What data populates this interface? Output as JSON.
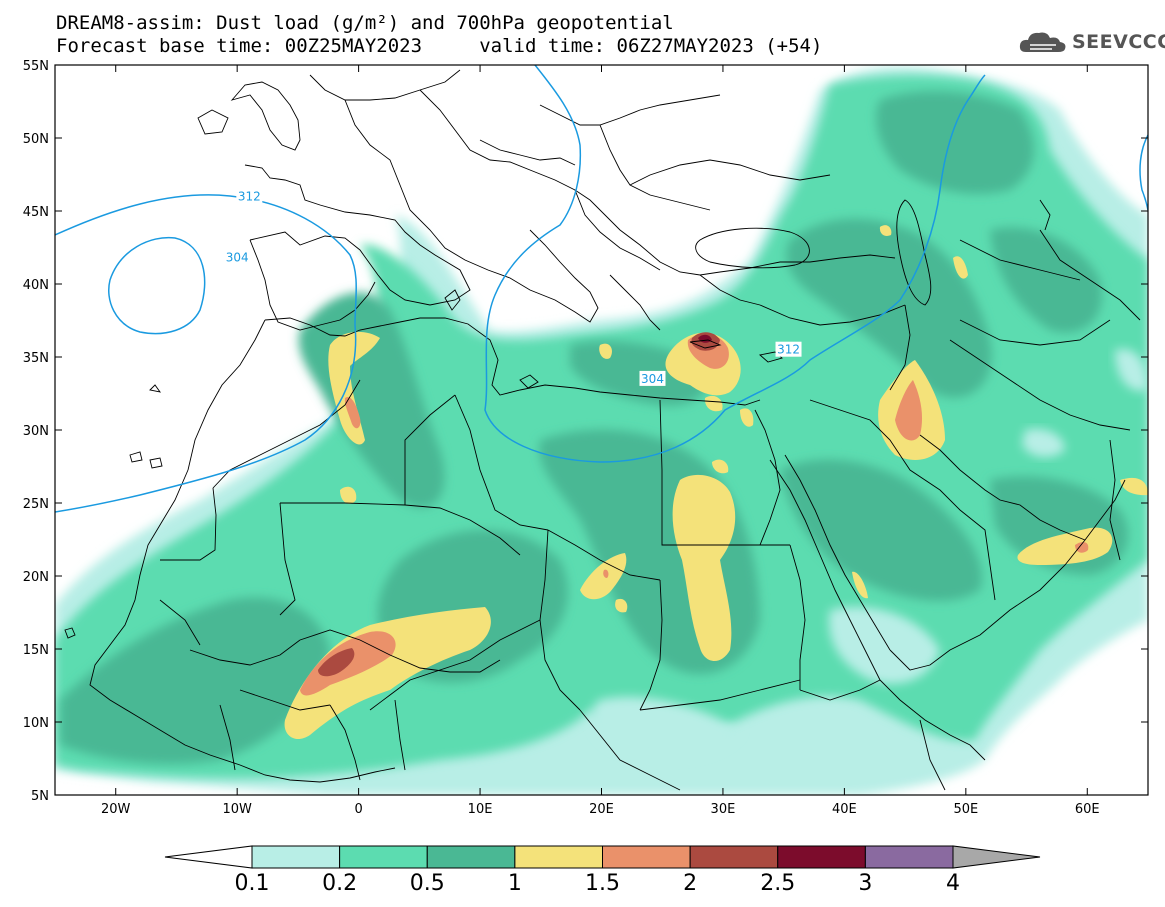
{
  "title": {
    "line1": "DREAM8-assim: Dust load (g/m²) and 700hPa geopotential",
    "line2": "Forecast base time: 00Z25MAY2023     valid time: 06Z27MAY2023 (+54)"
  },
  "logo": {
    "text": "SEEVCCC",
    "icon": "cloud-icon"
  },
  "map": {
    "lon_range": [
      -25,
      65
    ],
    "lat_range": [
      5,
      55
    ],
    "lon_ticks": [
      {
        "value": -20,
        "label": "20W"
      },
      {
        "value": -10,
        "label": "10W"
      },
      {
        "value": 0,
        "label": "0"
      },
      {
        "value": 10,
        "label": "10E"
      },
      {
        "value": 20,
        "label": "20E"
      },
      {
        "value": 30,
        "label": "30E"
      },
      {
        "value": 40,
        "label": "40E"
      },
      {
        "value": 50,
        "label": "50E"
      },
      {
        "value": 60,
        "label": "60E"
      }
    ],
    "lat_ticks": [
      {
        "value": 55,
        "label": "55N"
      },
      {
        "value": 50,
        "label": "50N"
      },
      {
        "value": 45,
        "label": "45N"
      },
      {
        "value": 40,
        "label": "40N"
      },
      {
        "value": 35,
        "label": "35N"
      },
      {
        "value": 30,
        "label": "30N"
      },
      {
        "value": 25,
        "label": "25N"
      },
      {
        "value": 20,
        "label": "20N"
      },
      {
        "value": 15,
        "label": "15N"
      },
      {
        "value": 10,
        "label": "10N"
      },
      {
        "value": 5,
        "label": "5N"
      }
    ],
    "contour_labels": [
      {
        "text": "312",
        "lon": -9,
        "lat": 46
      },
      {
        "text": "304",
        "lon": -10,
        "lat": 41.8
      },
      {
        "text": "304",
        "lon": 24.2,
        "lat": 33.5
      },
      {
        "text": "312",
        "lon": 35.4,
        "lat": 35.5
      }
    ],
    "colors": {
      "contour": "#1a9ae0",
      "border": "#000000",
      "background": "#ffffff"
    }
  },
  "colorbar": {
    "colors": [
      "#b8eee6",
      "#5cdcb0",
      "#4ab894",
      "#f4e27a",
      "#ea916a",
      "#ab4a40",
      "#7c0c2c",
      "#8a6aa0"
    ],
    "under_color": "#ffffff",
    "over_color": "#a8a8a8",
    "labels": [
      "0.1",
      "0.2",
      "0.5",
      "1",
      "1.5",
      "2",
      "2.5",
      "3",
      "4"
    ]
  }
}
